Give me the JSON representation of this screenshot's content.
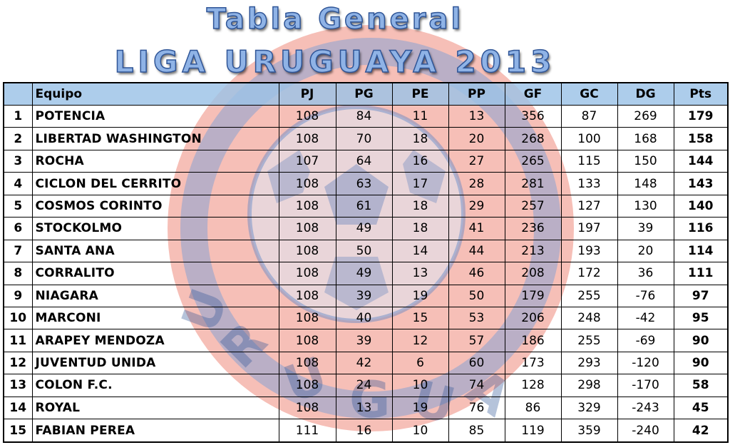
{
  "title": {
    "line1": "Tabla General",
    "line2": "LIGA URUGUAYA 2013"
  },
  "watermark": {
    "icon": "club-crest-soccer-ball-watermark",
    "text": "URUGUAY",
    "colors": {
      "red": "#e8442f",
      "blue": "#2f5597"
    }
  },
  "table": {
    "headers": {
      "pos": "",
      "team": "Equipo",
      "pj": "PJ",
      "pg": "PG",
      "pe": "PE",
      "pp": "PP",
      "gf": "GF",
      "gc": "GC",
      "dg": "DG",
      "pts": "Pts"
    },
    "header_color": "#9bc2e6",
    "rows": [
      {
        "pos": "1",
        "team": "POTENCIA",
        "pj": "108",
        "pg": "84",
        "pe": "11",
        "pp": "13",
        "gf": "356",
        "gc": "87",
        "dg": "269",
        "pts": "179"
      },
      {
        "pos": "2",
        "team": "LIBERTAD WASHINGTON",
        "pj": "108",
        "pg": "70",
        "pe": "18",
        "pp": "20",
        "gf": "268",
        "gc": "100",
        "dg": "168",
        "pts": "158"
      },
      {
        "pos": "3",
        "team": "ROCHA",
        "pj": "107",
        "pg": "64",
        "pe": "16",
        "pp": "27",
        "gf": "265",
        "gc": "115",
        "dg": "150",
        "pts": "144"
      },
      {
        "pos": "4",
        "team": "CICLON DEL CERRITO",
        "pj": "108",
        "pg": "63",
        "pe": "17",
        "pp": "28",
        "gf": "281",
        "gc": "133",
        "dg": "148",
        "pts": "143"
      },
      {
        "pos": "5",
        "team": "COSMOS CORINTO",
        "pj": "108",
        "pg": "61",
        "pe": "18",
        "pp": "29",
        "gf": "257",
        "gc": "127",
        "dg": "130",
        "pts": "140"
      },
      {
        "pos": "6",
        "team": "STOCKOLMO",
        "pj": "108",
        "pg": "49",
        "pe": "18",
        "pp": "41",
        "gf": "236",
        "gc": "197",
        "dg": "39",
        "pts": "116"
      },
      {
        "pos": "7",
        "team": "SANTA ANA",
        "pj": "108",
        "pg": "50",
        "pe": "14",
        "pp": "44",
        "gf": "213",
        "gc": "193",
        "dg": "20",
        "pts": "114"
      },
      {
        "pos": "8",
        "team": "CORRALITO",
        "pj": "108",
        "pg": "49",
        "pe": "13",
        "pp": "46",
        "gf": "208",
        "gc": "172",
        "dg": "36",
        "pts": "111"
      },
      {
        "pos": "9",
        "team": "NIAGARA",
        "pj": "108",
        "pg": "39",
        "pe": "19",
        "pp": "50",
        "gf": "179",
        "gc": "255",
        "dg": "-76",
        "pts": "97"
      },
      {
        "pos": "10",
        "team": "MARCONI",
        "pj": "108",
        "pg": "40",
        "pe": "15",
        "pp": "53",
        "gf": "206",
        "gc": "248",
        "dg": "-42",
        "pts": "95"
      },
      {
        "pos": "11",
        "team": "ARAPEY MENDOZA",
        "pj": "108",
        "pg": "39",
        "pe": "12",
        "pp": "57",
        "gf": "186",
        "gc": "255",
        "dg": "-69",
        "pts": "90"
      },
      {
        "pos": "12",
        "team": "JUVENTUD UNIDA",
        "pj": "108",
        "pg": "42",
        "pe": "6",
        "pp": "60",
        "gf": "173",
        "gc": "293",
        "dg": "-120",
        "pts": "90"
      },
      {
        "pos": "13",
        "team": "COLON F.C.",
        "pj": "108",
        "pg": "24",
        "pe": "10",
        "pp": "74",
        "gf": "128",
        "gc": "298",
        "dg": "-170",
        "pts": "58"
      },
      {
        "pos": "14",
        "team": "ROYAL",
        "pj": "108",
        "pg": "13",
        "pe": "19",
        "pp": "76",
        "gf": "86",
        "gc": "329",
        "dg": "-243",
        "pts": "45"
      },
      {
        "pos": "15",
        "team": "FABIAN PEREA",
        "pj": "111",
        "pg": "16",
        "pe": "10",
        "pp": "85",
        "gf": "119",
        "gc": "359",
        "dg": "-240",
        "pts": "42"
      }
    ]
  }
}
